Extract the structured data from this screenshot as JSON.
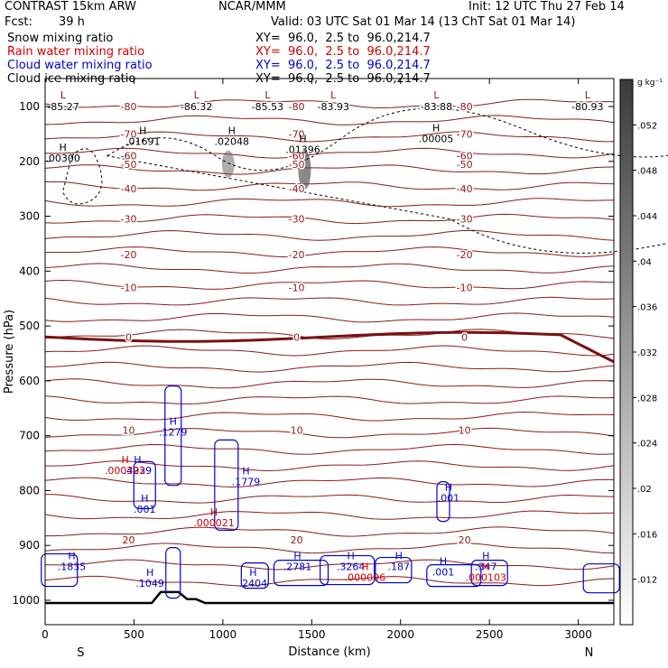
{
  "header": {
    "model": "CONTRAST 15km ARW",
    "center": "NCAR/MMM",
    "init": "Init: 12 UTC Thu 27 Feb 14",
    "fcst_label": "Fcst:",
    "fcst_value": "39 h",
    "valid": "Valid: 03 UTC Sat 01 Mar 14 (13 ChT Sat 01 Mar 14)"
  },
  "fields": [
    {
      "name": "Snow mixing ratio",
      "color": "#000000",
      "xy": "XY=  96.0,  2.5 to  96.0,214.7"
    },
    {
      "name": "Rain water mixing ratio",
      "color": "#d00000",
      "xy": "XY=  96.0,  2.5 to  96.0,214.7"
    },
    {
      "name": "Cloud water mixing ratio",
      "color": "#0000cc",
      "xy": "XY=  96.0,  2.5 to  96.0,214.7"
    },
    {
      "name": "Cloud ice mixing ratio",
      "color": "#000000",
      "xy": "XY=  96.0,  2.5 to  96.0,214.7"
    }
  ],
  "chart_data": {
    "type": "cross-section contour",
    "xlabel": "Distance (km)",
    "ylabel": "Pressure (hPa)",
    "xlim": [
      0,
      3200
    ],
    "ylim": [
      1050,
      50
    ],
    "x_ticks": [
      0,
      500,
      1000,
      1500,
      2000,
      2500,
      3000
    ],
    "y_ticks": [
      100,
      200,
      300,
      400,
      500,
      600,
      700,
      800,
      900,
      1000
    ],
    "x_end_labels": {
      "left": "S",
      "right": "N"
    },
    "temperature_isotherms": [
      {
        "value": -80,
        "p": 100
      },
      {
        "value": -70,
        "p": 150
      },
      {
        "value": -60,
        "p": 190
      },
      {
        "value": -50,
        "p": 205
      },
      {
        "value": -40,
        "p": 250
      },
      {
        "value": -30,
        "p": 305
      },
      {
        "value": -20,
        "p": 370
      },
      {
        "value": -10,
        "p": 430
      },
      {
        "value": 0,
        "p": 520
      },
      {
        "value": 10,
        "p": 690
      },
      {
        "value": 20,
        "p": 890
      }
    ],
    "temperature_labels": [
      "-80",
      "-70",
      "-60",
      "-50",
      "-40",
      "-30",
      "-20",
      "-10",
      "0",
      "10",
      "20"
    ],
    "lows": [
      {
        "label": "L",
        "value": "-85.27",
        "x": 0
      },
      {
        "label": "L",
        "value": "-86.32",
        "x": 750
      },
      {
        "label": "L",
        "value": "-85.53",
        "x": 1150
      },
      {
        "label": "L",
        "value": "-83.93",
        "x": 1520
      },
      {
        "label": "L",
        "value": "-83.88",
        "x": 2100
      },
      {
        "label": "L",
        "value": "-80.93",
        "x": 2950
      }
    ],
    "snow_maxima": [
      {
        "value": ".00300",
        "x": 100,
        "p": 200
      },
      {
        "value": ".01691",
        "x": 550,
        "p": 170
      },
      {
        "value": ".02048",
        "x": 1050,
        "p": 170
      },
      {
        "value": ".01396",
        "x": 1450,
        "p": 185
      },
      {
        "value": ".00005",
        "x": 2200,
        "p": 165
      }
    ],
    "rain_maxima": [
      {
        "value": ".000392",
        "x": 450,
        "p": 770
      },
      {
        "value": ".000021",
        "x": 950,
        "p": 865
      },
      {
        "value": ".000096",
        "x": 1800,
        "p": 965
      },
      {
        "value": ".000103",
        "x": 2480,
        "p": 965
      }
    ],
    "cloud_water_maxima": [
      {
        "value": ".1279",
        "x": 720,
        "p": 700
      },
      {
        "value": ".1779",
        "x": 1130,
        "p": 790
      },
      {
        "value": ".4239",
        "x": 520,
        "p": 770
      },
      {
        "value": ".001",
        "x": 560,
        "p": 840
      },
      {
        "value": ".1835",
        "x": 150,
        "p": 945
      },
      {
        "value": ".1049",
        "x": 590,
        "p": 975
      },
      {
        "value": ".2404",
        "x": 1170,
        "p": 975
      },
      {
        "value": ".2781",
        "x": 1420,
        "p": 945
      },
      {
        "value": ".3264",
        "x": 1720,
        "p": 945
      },
      {
        "value": ".187",
        "x": 1990,
        "p": 945
      },
      {
        "value": ".001",
        "x": 2240,
        "p": 955
      },
      {
        "value": ".347",
        "x": 2480,
        "p": 945
      },
      {
        "value": ".001",
        "x": 2270,
        "p": 820
      }
    ],
    "colorbar": {
      "unit": "g kg⁻¹",
      "ticks": [
        ".052",
        ".048",
        ".044",
        ".04",
        ".036",
        ".032",
        ".028",
        ".024",
        ".02",
        ".016",
        ".012"
      ],
      "range": [
        0.008,
        0.056
      ]
    }
  }
}
